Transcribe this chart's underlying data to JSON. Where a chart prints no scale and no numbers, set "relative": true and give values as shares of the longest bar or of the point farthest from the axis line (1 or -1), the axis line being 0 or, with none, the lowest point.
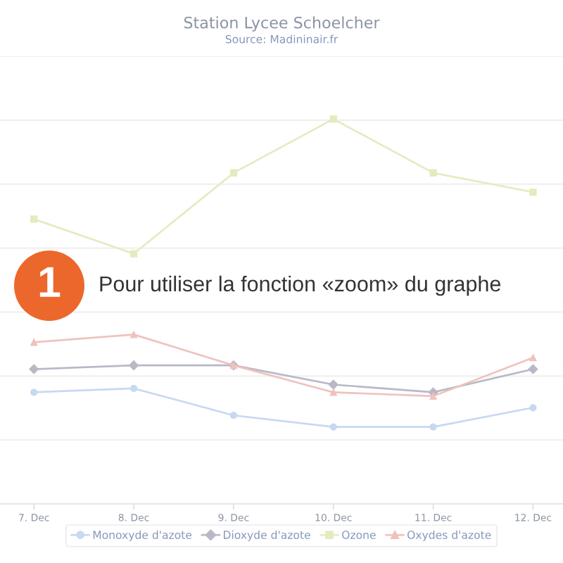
{
  "chart_data": {
    "type": "line",
    "title": "Station Lycee Schoelcher",
    "subtitle": "Source: Madininair.fr",
    "categories": [
      "7. Dec",
      "8. Dec",
      "9. Dec",
      "10. Dec",
      "11. Dec",
      "12. Dec"
    ],
    "relative": true,
    "series": [
      {
        "name": "Monoxyde d'azote",
        "color": "#c6d9f1",
        "marker": "circle",
        "values": [
          0.29,
          0.3,
          0.23,
          0.2,
          0.2,
          0.25
        ]
      },
      {
        "name": "Dioxyde d'azote",
        "color": "#b8b9c6",
        "marker": "diamond",
        "values": [
          0.35,
          0.36,
          0.36,
          0.31,
          0.29,
          0.35
        ]
      },
      {
        "name": "Ozone",
        "color": "#e2ecbf",
        "marker": "square",
        "values": [
          0.74,
          0.65,
          0.86,
          1,
          0.86,
          0.81
        ]
      },
      {
        "name": "Oxydes d'azote",
        "color": "#efc2bc",
        "marker": "triangle",
        "values": [
          0.42,
          0.44,
          0.36,
          0.29,
          0.28,
          0.38
        ]
      }
    ],
    "grid": "y",
    "legend": "bottom",
    "annotations": [
      "1",
      "Pour utiliser la fonction «zoom» du graphe"
    ]
  }
}
